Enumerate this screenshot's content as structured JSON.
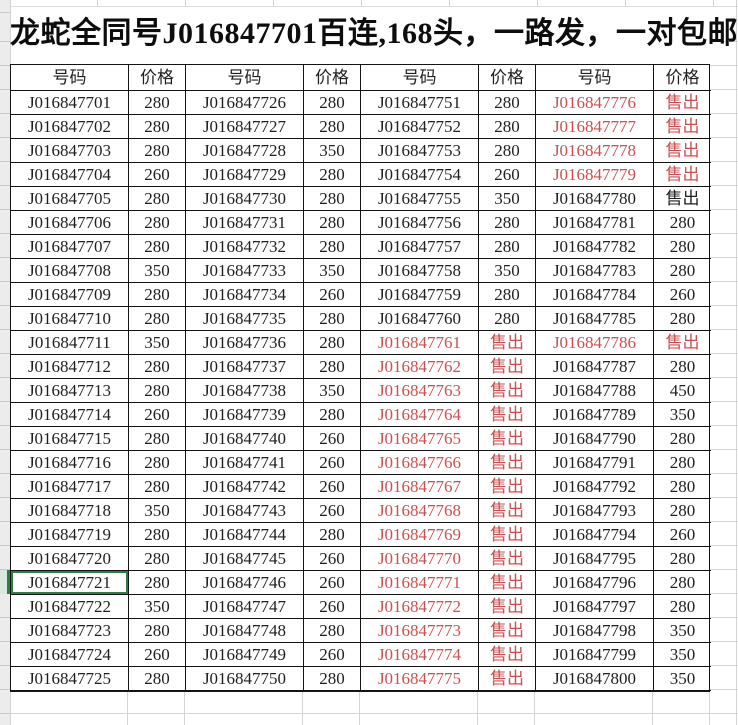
{
  "title": "龙蛇全同号J016847701百连,168头，一路发，一对包邮政",
  "sold_label": "售出",
  "colors": {
    "red": "#cc4f4f",
    "ink": "#1f1f1f",
    "selection_green": "#2e7d46",
    "grid_gray": "#d4d4d4"
  },
  "selected_cell": "J016847721",
  "table": {
    "columns": [
      "号码",
      "价格",
      "号码",
      "价格",
      "号码",
      "价格",
      "号码",
      "价格"
    ],
    "groups": [
      {
        "rows": [
          {
            "num": "J016847701",
            "price": "280",
            "style": "black"
          },
          {
            "num": "J016847702",
            "price": "280",
            "style": "black"
          },
          {
            "num": "J016847703",
            "price": "280",
            "style": "black"
          },
          {
            "num": "J016847704",
            "price": "260",
            "style": "black"
          },
          {
            "num": "J016847705",
            "price": "280",
            "style": "black"
          },
          {
            "num": "J016847706",
            "price": "280",
            "style": "black"
          },
          {
            "num": "J016847707",
            "price": "280",
            "style": "black"
          },
          {
            "num": "J016847708",
            "price": "350",
            "style": "black"
          },
          {
            "num": "J016847709",
            "price": "280",
            "style": "black"
          },
          {
            "num": "J016847710",
            "price": "280",
            "style": "black"
          },
          {
            "num": "J016847711",
            "price": "350",
            "style": "black"
          },
          {
            "num": "J016847712",
            "price": "280",
            "style": "black"
          },
          {
            "num": "J016847713",
            "price": "280",
            "style": "black"
          },
          {
            "num": "J016847714",
            "price": "260",
            "style": "black"
          },
          {
            "num": "J016847715",
            "price": "280",
            "style": "black"
          },
          {
            "num": "J016847716",
            "price": "280",
            "style": "black"
          },
          {
            "num": "J016847717",
            "price": "280",
            "style": "black"
          },
          {
            "num": "J016847718",
            "price": "350",
            "style": "black"
          },
          {
            "num": "J016847719",
            "price": "280",
            "style": "black"
          },
          {
            "num": "J016847720",
            "price": "280",
            "style": "black"
          },
          {
            "num": "J016847721",
            "price": "280",
            "style": "black",
            "selected": true
          },
          {
            "num": "J016847722",
            "price": "350",
            "style": "black"
          },
          {
            "num": "J016847723",
            "price": "280",
            "style": "black"
          },
          {
            "num": "J016847724",
            "price": "260",
            "style": "black"
          },
          {
            "num": "J016847725",
            "price": "280",
            "style": "black"
          }
        ]
      },
      {
        "rows": [
          {
            "num": "J016847726",
            "price": "280",
            "style": "black"
          },
          {
            "num": "J016847727",
            "price": "280",
            "style": "black"
          },
          {
            "num": "J016847728",
            "price": "350",
            "style": "black"
          },
          {
            "num": "J016847729",
            "price": "280",
            "style": "black"
          },
          {
            "num": "J016847730",
            "price": "280",
            "style": "black"
          },
          {
            "num": "J016847731",
            "price": "280",
            "style": "black"
          },
          {
            "num": "J016847732",
            "price": "280",
            "style": "black"
          },
          {
            "num": "J016847733",
            "price": "350",
            "style": "black"
          },
          {
            "num": "J016847734",
            "price": "260",
            "style": "black"
          },
          {
            "num": "J016847735",
            "price": "280",
            "style": "black"
          },
          {
            "num": "J016847736",
            "price": "280",
            "style": "black"
          },
          {
            "num": "J016847737",
            "price": "280",
            "style": "black"
          },
          {
            "num": "J016847738",
            "price": "350",
            "style": "black"
          },
          {
            "num": "J016847739",
            "price": "280",
            "style": "black"
          },
          {
            "num": "J016847740",
            "price": "260",
            "style": "black"
          },
          {
            "num": "J016847741",
            "price": "260",
            "style": "black"
          },
          {
            "num": "J016847742",
            "price": "260",
            "style": "black"
          },
          {
            "num": "J016847743",
            "price": "260",
            "style": "black"
          },
          {
            "num": "J016847744",
            "price": "280",
            "style": "black"
          },
          {
            "num": "J016847745",
            "price": "260",
            "style": "black"
          },
          {
            "num": "J016847746",
            "price": "260",
            "style": "black"
          },
          {
            "num": "J016847747",
            "price": "260",
            "style": "black"
          },
          {
            "num": "J016847748",
            "price": "280",
            "style": "black"
          },
          {
            "num": "J016847749",
            "price": "260",
            "style": "black"
          },
          {
            "num": "J016847750",
            "price": "280",
            "style": "black"
          }
        ]
      },
      {
        "rows": [
          {
            "num": "J016847751",
            "price": "280",
            "style": "black"
          },
          {
            "num": "J016847752",
            "price": "280",
            "style": "black"
          },
          {
            "num": "J016847753",
            "price": "280",
            "style": "black"
          },
          {
            "num": "J016847754",
            "price": "260",
            "style": "black"
          },
          {
            "num": "J016847755",
            "price": "350",
            "style": "black"
          },
          {
            "num": "J016847756",
            "price": "280",
            "style": "black"
          },
          {
            "num": "J016847757",
            "price": "280",
            "style": "black"
          },
          {
            "num": "J016847758",
            "price": "350",
            "style": "black"
          },
          {
            "num": "J016847759",
            "price": "280",
            "style": "black"
          },
          {
            "num": "J016847760",
            "price": "280",
            "style": "black"
          },
          {
            "num": "J016847761",
            "price": "售出",
            "style": "red"
          },
          {
            "num": "J016847762",
            "price": "售出",
            "style": "red"
          },
          {
            "num": "J016847763",
            "price": "售出",
            "style": "red"
          },
          {
            "num": "J016847764",
            "price": "售出",
            "style": "red"
          },
          {
            "num": "J016847765",
            "price": "售出",
            "style": "red"
          },
          {
            "num": "J016847766",
            "price": "售出",
            "style": "red"
          },
          {
            "num": "J016847767",
            "price": "售出",
            "style": "red"
          },
          {
            "num": "J016847768",
            "price": "售出",
            "style": "red"
          },
          {
            "num": "J016847769",
            "price": "售出",
            "style": "red"
          },
          {
            "num": "J016847770",
            "price": "售出",
            "style": "red"
          },
          {
            "num": "J016847771",
            "price": "售出",
            "style": "red"
          },
          {
            "num": "J016847772",
            "price": "售出",
            "style": "red"
          },
          {
            "num": "J016847773",
            "price": "售出",
            "style": "red"
          },
          {
            "num": "J016847774",
            "price": "售出",
            "style": "red"
          },
          {
            "num": "J016847775",
            "price": "售出",
            "style": "red"
          }
        ]
      },
      {
        "rows": [
          {
            "num": "J016847776",
            "price": "售出",
            "style": "red"
          },
          {
            "num": "J016847777",
            "price": "售出",
            "style": "red"
          },
          {
            "num": "J016847778",
            "price": "售出",
            "style": "red"
          },
          {
            "num": "J016847779",
            "price": "售出",
            "style": "red"
          },
          {
            "num": "J016847780",
            "price": "售出",
            "style": "black"
          },
          {
            "num": "J016847781",
            "price": "280",
            "style": "black"
          },
          {
            "num": "J016847782",
            "price": "280",
            "style": "black"
          },
          {
            "num": "J016847783",
            "price": "280",
            "style": "black"
          },
          {
            "num": "J016847784",
            "price": "260",
            "style": "black"
          },
          {
            "num": "J016847785",
            "price": "280",
            "style": "black"
          },
          {
            "num": "J016847786",
            "price": "售出",
            "style": "red"
          },
          {
            "num": "J016847787",
            "price": "280",
            "style": "black"
          },
          {
            "num": "J016847788",
            "price": "450",
            "style": "black"
          },
          {
            "num": "J016847789",
            "price": "350",
            "style": "black"
          },
          {
            "num": "J016847790",
            "price": "280",
            "style": "black"
          },
          {
            "num": "J016847791",
            "price": "280",
            "style": "black"
          },
          {
            "num": "J016847792",
            "price": "280",
            "style": "black"
          },
          {
            "num": "J016847793",
            "price": "280",
            "style": "black"
          },
          {
            "num": "J016847794",
            "price": "260",
            "style": "black"
          },
          {
            "num": "J016847795",
            "price": "280",
            "style": "black"
          },
          {
            "num": "J016847796",
            "price": "280",
            "style": "black"
          },
          {
            "num": "J016847797",
            "price": "280",
            "style": "black"
          },
          {
            "num": "J016847798",
            "price": "350",
            "style": "black"
          },
          {
            "num": "J016847799",
            "price": "350",
            "style": "black"
          },
          {
            "num": "J016847800",
            "price": "350",
            "style": "black"
          }
        ]
      }
    ]
  }
}
